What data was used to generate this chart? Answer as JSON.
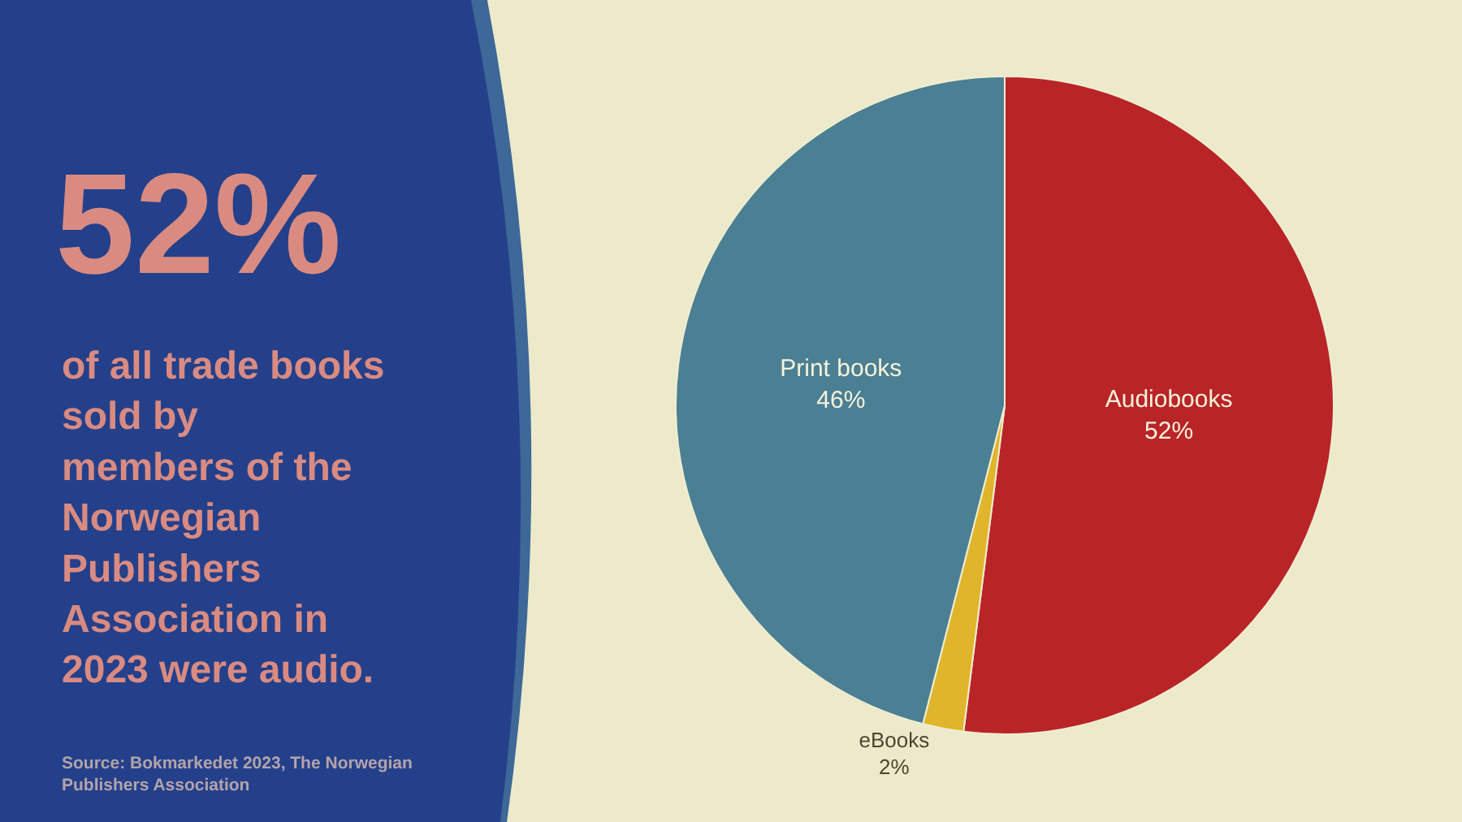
{
  "chart_data": {
    "type": "pie",
    "title": "52%",
    "subtitle": "of all trade books\nsold by\nmembers of the\nNorwegian\nPublishers\nAssociation in\n2023 were audio.",
    "annotations": [
      "Source: Bokmarkedet 2023, The Norwegian\nPublishers Association"
    ],
    "categories": [
      "Audiobooks",
      "eBooks",
      "Print books"
    ],
    "values": [
      52,
      2,
      46
    ],
    "value_labels": [
      "52%",
      "2%",
      "46%"
    ],
    "colors": [
      "#b92427",
      "#e0b52c",
      "#4b7f93"
    ]
  }
}
